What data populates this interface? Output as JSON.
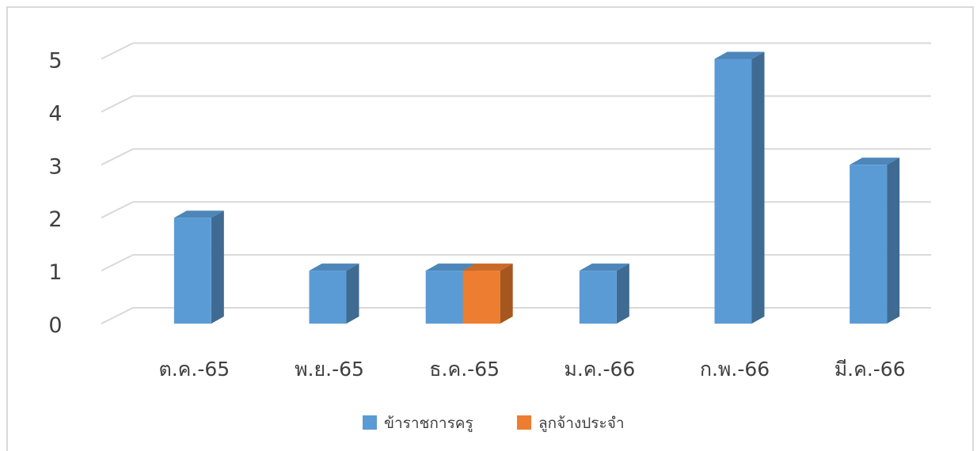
{
  "chart_data": {
    "type": "bar",
    "title": "",
    "xlabel": "",
    "ylabel": "",
    "categories": [
      "ต.ค.-65",
      "พ.ย.-65",
      "ธ.ค.-65",
      "ม.ค.-66",
      "ก.พ.-66",
      "มี.ค.-66"
    ],
    "series": [
      {
        "name": "ข้าราชการครู",
        "values": [
          2,
          1,
          1,
          1,
          5,
          3
        ],
        "color": "#5b9bd5",
        "side_color": "#3f6a92",
        "top_color": "#4d86b8"
      },
      {
        "name": "ลูกจ้างประจำ",
        "values": [
          0,
          0,
          1,
          0,
          0,
          0
        ],
        "color": "#ed7d31",
        "side_color": "#a6571f",
        "top_color": "#c96a28"
      }
    ],
    "yticks": [
      "0",
      "1",
      "2",
      "3",
      "4",
      "5"
    ],
    "ylim": [
      0,
      5
    ],
    "grid": true,
    "legend_position": "bottom",
    "style": "3d-clustered-column"
  }
}
